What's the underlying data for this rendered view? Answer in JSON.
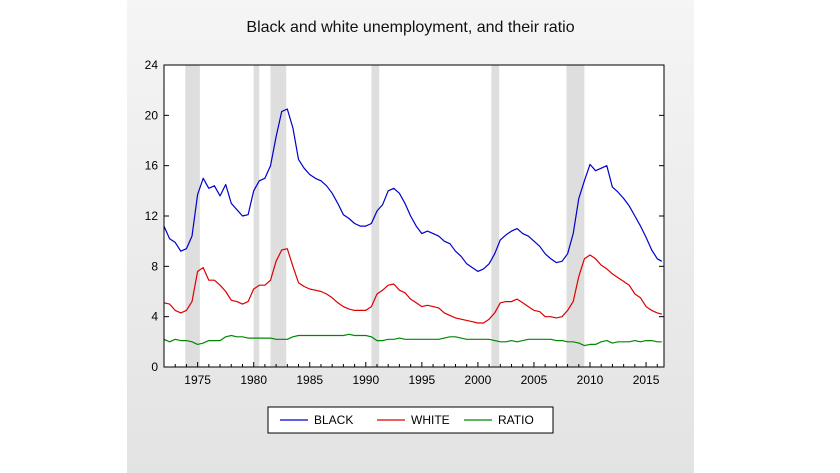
{
  "chart_data": {
    "type": "line",
    "title": "Black and white unemployment, and their ratio",
    "xlabel": "",
    "ylabel": "",
    "xlim": [
      1972,
      2016.6
    ],
    "ylim": [
      0,
      24
    ],
    "yticks": [
      0,
      4,
      8,
      12,
      16,
      20,
      24
    ],
    "xticks": [
      1975,
      1980,
      1985,
      1990,
      1995,
      2000,
      2005,
      2010,
      2015
    ],
    "grid": false,
    "legend_position": "bottom-center",
    "recessions": [
      [
        1973.9,
        1975.2
      ],
      [
        1980.0,
        1980.5
      ],
      [
        1981.5,
        1982.9
      ],
      [
        1990.5,
        1991.2
      ],
      [
        2001.2,
        2001.9
      ],
      [
        2007.9,
        2009.5
      ]
    ],
    "series": [
      {
        "name": "BLACK",
        "color": "#0000cc",
        "x": [
          1972.0,
          1972.5,
          1973.0,
          1973.5,
          1974.0,
          1974.5,
          1975.0,
          1975.5,
          1976.0,
          1976.5,
          1977.0,
          1977.5,
          1978.0,
          1978.5,
          1979.0,
          1979.5,
          1980.0,
          1980.5,
          1981.0,
          1981.5,
          1982.0,
          1982.5,
          1983.0,
          1983.5,
          1984.0,
          1984.5,
          1985.0,
          1985.5,
          1986.0,
          1986.5,
          1987.0,
          1987.5,
          1988.0,
          1988.5,
          1989.0,
          1989.5,
          1990.0,
          1990.5,
          1991.0,
          1991.5,
          1992.0,
          1992.5,
          1993.0,
          1993.5,
          1994.0,
          1994.5,
          1995.0,
          1995.5,
          1996.0,
          1996.5,
          1997.0,
          1997.5,
          1998.0,
          1998.5,
          1999.0,
          1999.5,
          2000.0,
          2000.5,
          2001.0,
          2001.5,
          2002.0,
          2002.5,
          2003.0,
          2003.5,
          2004.0,
          2004.5,
          2005.0,
          2005.5,
          2006.0,
          2006.5,
          2007.0,
          2007.5,
          2008.0,
          2008.5,
          2009.0,
          2009.5,
          2010.0,
          2010.5,
          2011.0,
          2011.5,
          2012.0,
          2012.5,
          2013.0,
          2013.5,
          2014.0,
          2014.5,
          2015.0,
          2015.5,
          2016.0,
          2016.4
        ],
        "y": [
          11.2,
          10.2,
          9.9,
          9.2,
          9.4,
          10.4,
          13.7,
          15.0,
          14.2,
          14.4,
          13.6,
          14.5,
          13.0,
          12.5,
          12.0,
          12.1,
          14.0,
          14.8,
          15.0,
          16.0,
          18.3,
          20.3,
          20.5,
          19.0,
          16.5,
          15.8,
          15.3,
          15.0,
          14.8,
          14.4,
          13.8,
          13.0,
          12.1,
          11.8,
          11.4,
          11.2,
          11.2,
          11.4,
          12.4,
          12.9,
          14.0,
          14.2,
          13.8,
          13.0,
          12.0,
          11.2,
          10.6,
          10.8,
          10.6,
          10.4,
          10.0,
          9.8,
          9.2,
          8.8,
          8.2,
          7.9,
          7.6,
          7.8,
          8.2,
          9.0,
          10.1,
          10.5,
          10.8,
          11.0,
          10.6,
          10.4,
          10.0,
          9.6,
          9.0,
          8.6,
          8.3,
          8.4,
          9.0,
          10.6,
          13.4,
          14.8,
          16.1,
          15.6,
          15.8,
          16.0,
          14.3,
          13.9,
          13.4,
          12.8,
          12.0,
          11.2,
          10.3,
          9.3,
          8.6,
          8.4
        ]
      },
      {
        "name": "WHITE",
        "color": "#dd0000",
        "x": [
          1972.0,
          1972.5,
          1973.0,
          1973.5,
          1974.0,
          1974.5,
          1975.0,
          1975.5,
          1976.0,
          1976.5,
          1977.0,
          1977.5,
          1978.0,
          1978.5,
          1979.0,
          1979.5,
          1980.0,
          1980.5,
          1981.0,
          1981.5,
          1982.0,
          1982.5,
          1983.0,
          1983.5,
          1984.0,
          1984.5,
          1985.0,
          1985.5,
          1986.0,
          1986.5,
          1987.0,
          1987.5,
          1988.0,
          1988.5,
          1989.0,
          1989.5,
          1990.0,
          1990.5,
          1991.0,
          1991.5,
          1992.0,
          1992.5,
          1993.0,
          1993.5,
          1994.0,
          1994.5,
          1995.0,
          1995.5,
          1996.0,
          1996.5,
          1997.0,
          1997.5,
          1998.0,
          1998.5,
          1999.0,
          1999.5,
          2000.0,
          2000.5,
          2001.0,
          2001.5,
          2002.0,
          2002.5,
          2003.0,
          2003.5,
          2004.0,
          2004.5,
          2005.0,
          2005.5,
          2006.0,
          2006.5,
          2007.0,
          2007.5,
          2008.0,
          2008.5,
          2009.0,
          2009.5,
          2010.0,
          2010.5,
          2011.0,
          2011.5,
          2012.0,
          2012.5,
          2013.0,
          2013.5,
          2014.0,
          2014.5,
          2015.0,
          2015.5,
          2016.0,
          2016.4
        ],
        "y": [
          5.1,
          5.0,
          4.5,
          4.3,
          4.5,
          5.2,
          7.6,
          7.9,
          6.9,
          6.9,
          6.5,
          6.0,
          5.3,
          5.2,
          5.0,
          5.2,
          6.2,
          6.5,
          6.5,
          6.9,
          8.4,
          9.3,
          9.4,
          8.0,
          6.7,
          6.4,
          6.2,
          6.1,
          6.0,
          5.8,
          5.5,
          5.1,
          4.8,
          4.6,
          4.5,
          4.5,
          4.5,
          4.8,
          5.8,
          6.1,
          6.5,
          6.6,
          6.1,
          5.9,
          5.4,
          5.1,
          4.8,
          4.9,
          4.8,
          4.7,
          4.3,
          4.1,
          3.9,
          3.8,
          3.7,
          3.6,
          3.5,
          3.5,
          3.8,
          4.3,
          5.1,
          5.2,
          5.2,
          5.4,
          5.1,
          4.8,
          4.5,
          4.4,
          4.0,
          4.0,
          3.9,
          4.0,
          4.5,
          5.2,
          7.2,
          8.6,
          8.9,
          8.6,
          8.1,
          7.8,
          7.4,
          7.1,
          6.8,
          6.5,
          5.8,
          5.5,
          4.8,
          4.5,
          4.3,
          4.2
        ]
      },
      {
        "name": "RATIO",
        "color": "#008800",
        "x": [
          1972.0,
          1972.5,
          1973.0,
          1973.5,
          1974.0,
          1974.5,
          1975.0,
          1975.5,
          1976.0,
          1976.5,
          1977.0,
          1977.5,
          1978.0,
          1978.5,
          1979.0,
          1979.5,
          1980.0,
          1980.5,
          1981.0,
          1981.5,
          1982.0,
          1982.5,
          1983.0,
          1983.5,
          1984.0,
          1984.5,
          1985.0,
          1985.5,
          1986.0,
          1986.5,
          1987.0,
          1987.5,
          1988.0,
          1988.5,
          1989.0,
          1989.5,
          1990.0,
          1990.5,
          1991.0,
          1991.5,
          1992.0,
          1992.5,
          1993.0,
          1993.5,
          1994.0,
          1994.5,
          1995.0,
          1995.5,
          1996.0,
          1996.5,
          1997.0,
          1997.5,
          1998.0,
          1998.5,
          1999.0,
          1999.5,
          2000.0,
          2000.5,
          2001.0,
          2001.5,
          2002.0,
          2002.5,
          2003.0,
          2003.5,
          2004.0,
          2004.5,
          2005.0,
          2005.5,
          2006.0,
          2006.5,
          2007.0,
          2007.5,
          2008.0,
          2008.5,
          2009.0,
          2009.5,
          2010.0,
          2010.5,
          2011.0,
          2011.5,
          2012.0,
          2012.5,
          2013.0,
          2013.5,
          2014.0,
          2014.5,
          2015.0,
          2015.5,
          2016.0,
          2016.4
        ],
        "y": [
          2.2,
          2.0,
          2.2,
          2.1,
          2.1,
          2.0,
          1.8,
          1.9,
          2.1,
          2.1,
          2.1,
          2.4,
          2.5,
          2.4,
          2.4,
          2.3,
          2.3,
          2.3,
          2.3,
          2.3,
          2.2,
          2.2,
          2.2,
          2.4,
          2.5,
          2.5,
          2.5,
          2.5,
          2.5,
          2.5,
          2.5,
          2.5,
          2.5,
          2.6,
          2.5,
          2.5,
          2.5,
          2.4,
          2.1,
          2.1,
          2.2,
          2.2,
          2.3,
          2.2,
          2.2,
          2.2,
          2.2,
          2.2,
          2.2,
          2.2,
          2.3,
          2.4,
          2.4,
          2.3,
          2.2,
          2.2,
          2.2,
          2.2,
          2.2,
          2.1,
          2.0,
          2.0,
          2.1,
          2.0,
          2.1,
          2.2,
          2.2,
          2.2,
          2.2,
          2.2,
          2.1,
          2.1,
          2.0,
          2.0,
          1.9,
          1.7,
          1.8,
          1.8,
          2.0,
          2.1,
          1.9,
          2.0,
          2.0,
          2.0,
          2.1,
          2.0,
          2.1,
          2.1,
          2.0,
          2.0
        ]
      }
    ]
  }
}
